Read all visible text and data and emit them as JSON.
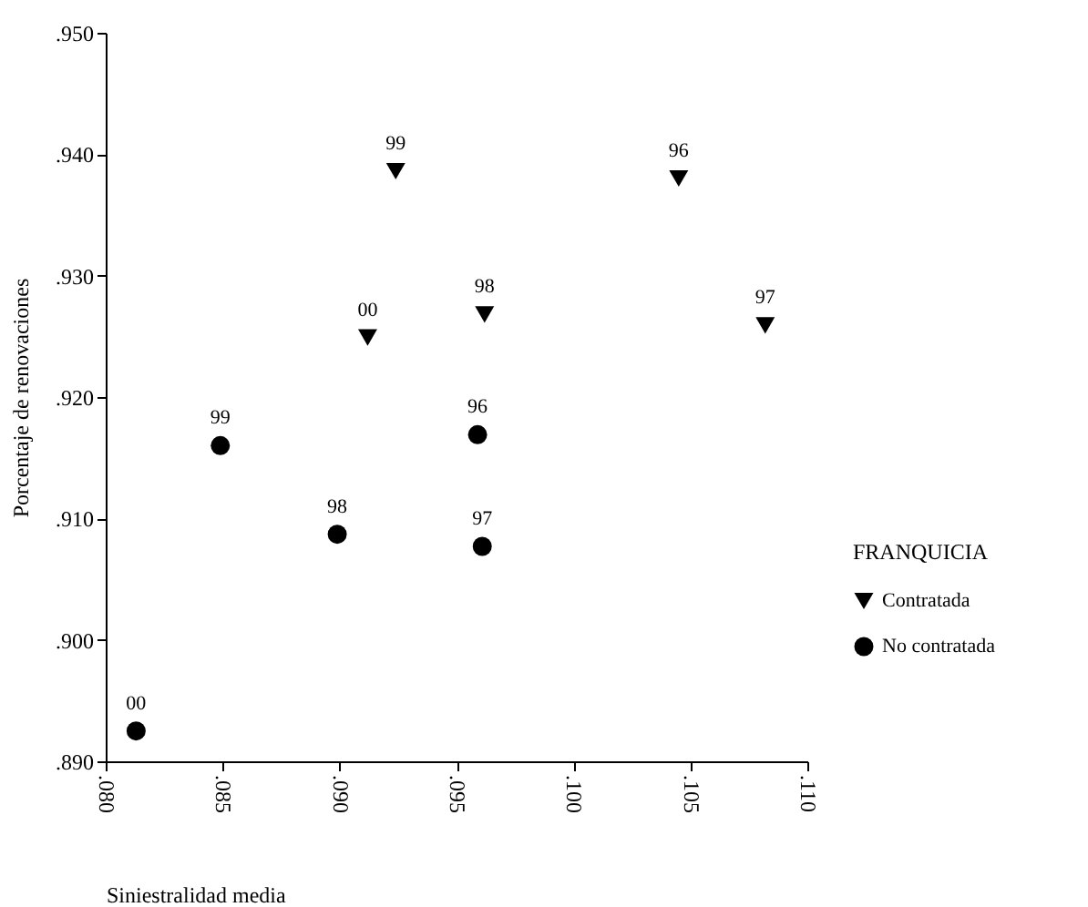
{
  "chart_data": {
    "type": "scatter",
    "xlabel": "Siniestralidad media",
    "ylabel": "Porcentaje de renovaciones",
    "legend_title": "FRANQUICIA",
    "series": [
      {
        "name": "Contratada",
        "color": "#000000",
        "marker": "triangle",
        "x": [
          0.0924,
          0.1045,
          0.0962,
          0.0912,
          0.1082
        ],
        "values": [
          0.9386,
          0.938,
          0.9268,
          0.9249,
          0.9259
        ]
      },
      {
        "name": "No contratada",
        "color": "#000000",
        "marker": "circle",
        "x": [
          0.0849,
          0.0959,
          0.0899,
          0.0961,
          0.0813
        ],
        "values": [
          0.916,
          0.9169,
          0.9087,
          0.9077,
          0.8925
        ]
      }
    ],
    "annotations": [
      {
        "text": "99",
        "x": 0.0924,
        "y": 0.9386
      },
      {
        "text": "96",
        "x": 0.1045,
        "y": 0.938
      },
      {
        "text": "98",
        "x": 0.0962,
        "y": 0.9268
      },
      {
        "text": "00",
        "x": 0.0912,
        "y": 0.9249
      },
      {
        "text": "97",
        "x": 0.1082,
        "y": 0.9259
      },
      {
        "text": "99",
        "x": 0.0849,
        "y": 0.916
      },
      {
        "text": "96",
        "x": 0.0959,
        "y": 0.9169
      },
      {
        "text": "98",
        "x": 0.0899,
        "y": 0.9087
      },
      {
        "text": "97",
        "x": 0.0961,
        "y": 0.9077
      },
      {
        "text": "00",
        "x": 0.0813,
        "y": 0.8925
      }
    ],
    "xlim": [
      0.08,
      0.11
    ],
    "ylim": [
      0.89,
      0.95
    ],
    "xticks": [
      {
        "value": 0.08,
        "label": ".080"
      },
      {
        "value": 0.085,
        "label": ".085"
      },
      {
        "value": 0.09,
        "label": ".090"
      },
      {
        "value": 0.095,
        "label": ".095"
      },
      {
        "value": 0.1,
        "label": ".100"
      },
      {
        "value": 0.105,
        "label": ".105"
      },
      {
        "value": 0.11,
        "label": ".110"
      }
    ],
    "yticks": [
      {
        "value": 0.89,
        "label": ".890"
      },
      {
        "value": 0.9,
        "label": ".900"
      },
      {
        "value": 0.91,
        "label": ".910"
      },
      {
        "value": 0.92,
        "label": ".920"
      },
      {
        "value": 0.93,
        "label": ".930"
      },
      {
        "value": 0.94,
        "label": ".940"
      },
      {
        "value": 0.95,
        "label": ".950"
      }
    ],
    "grid": false,
    "legend": "right"
  }
}
